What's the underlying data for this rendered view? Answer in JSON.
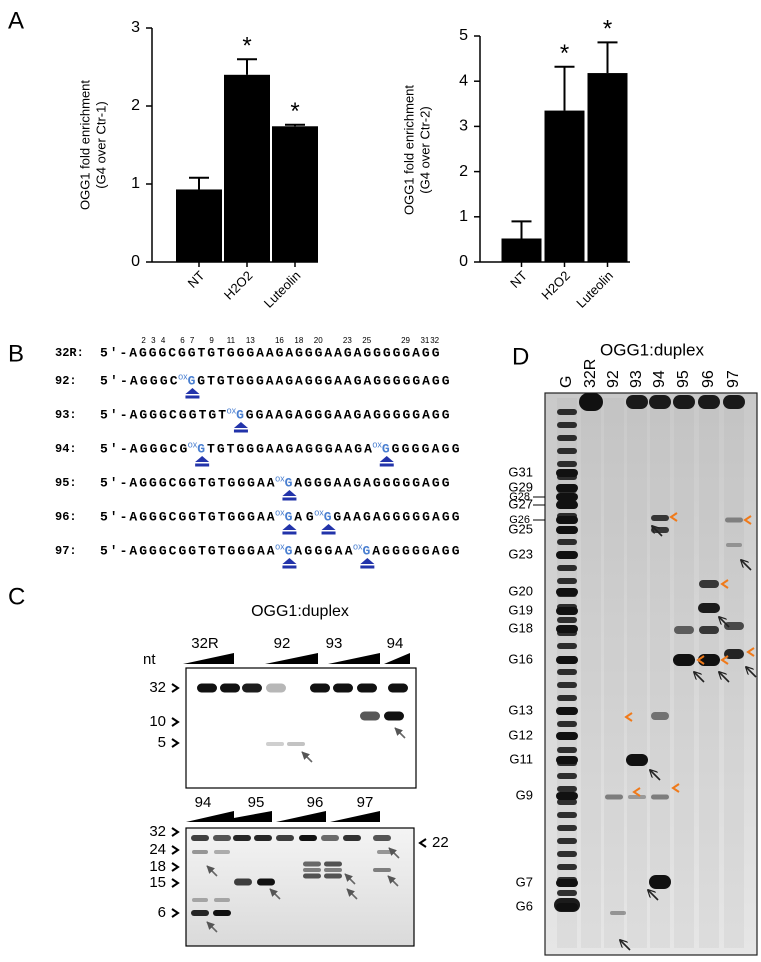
{
  "chart_data": [
    {
      "type": "bar",
      "ylabel": [
        "OGG1 fold enrichment",
        "(G4 over Ctr-1)"
      ],
      "categories": [
        "NT",
        "H2O2",
        "Luteolin"
      ],
      "values": [
        0.93,
        2.4,
        1.74
      ],
      "errors": [
        0.15,
        0.2,
        0.02
      ],
      "value_annotations": [
        null,
        "*",
        "*"
      ],
      "color": "#000000",
      "ylim": [
        0,
        3
      ],
      "yticks": [
        0,
        1,
        2,
        3
      ]
    },
    {
      "type": "bar",
      "ylabel": [
        "OGG1 fold enrichment",
        "(G4 over Ctr-2)"
      ],
      "categories": [
        "NT",
        "H2O2",
        "Luteolin"
      ],
      "values": [
        0.52,
        3.35,
        4.18
      ],
      "errors": [
        0.38,
        0.97,
        0.68
      ],
      "value_annotations": [
        null,
        "*",
        "*"
      ],
      "color": "#000000",
      "ylim": [
        0,
        5
      ],
      "yticks": [
        0,
        1,
        2,
        3,
        4,
        5
      ]
    }
  ],
  "panel_labels": [
    "A",
    "B",
    "C",
    "D"
  ],
  "sequences": {
    "positions": [
      2,
      3,
      4,
      6,
      7,
      9,
      11,
      13,
      16,
      18,
      20,
      23,
      25,
      29,
      31,
      32
    ],
    "ox_label": "ox",
    "rows": [
      {
        "label": "32R:",
        "segments": [
          {
            "text": "5'-AGGGCGGTGTGGGAAGAGGGAAGAGGGGGAGG"
          }
        ]
      },
      {
        "label": "92:",
        "segments": [
          {
            "text": "5'-AGGGC"
          },
          {
            "ox": "G"
          },
          {
            "text": "GTGTGGGAAGAGGGAAGAGGGGGAGG"
          }
        ]
      },
      {
        "label": "93:",
        "segments": [
          {
            "text": "5'-AGGGCGGTGT"
          },
          {
            "ox": "G"
          },
          {
            "text": "GGAAGAGGGAAGAGGGGGAGG"
          }
        ]
      },
      {
        "label": "94:",
        "segments": [
          {
            "text": "5'-AGGGCG"
          },
          {
            "ox": "G"
          },
          {
            "text": "TGTGGGAAGAGGGAAGA"
          },
          {
            "ox": "G"
          },
          {
            "text": "GGGGAGG"
          }
        ]
      },
      {
        "label": "95:",
        "segments": [
          {
            "text": "5'-AGGGCGGTGTGGGAA"
          },
          {
            "ox": "G"
          },
          {
            "text": "AGGGAAGAGGGGGAGG"
          }
        ]
      },
      {
        "label": "96:",
        "segments": [
          {
            "text": "5'-AGGGCGGTGTGGGAA"
          },
          {
            "ox": "G"
          },
          {
            "text": "AG"
          },
          {
            "ox": "G"
          },
          {
            "text": "GAAGAGGGGGAGG"
          }
        ]
      },
      {
        "label": "97:",
        "segments": [
          {
            "text": "5'-AGGGCGGTGTGGGAA"
          },
          {
            "ox": "G"
          },
          {
            "text": "AGGGAA"
          },
          {
            "ox": "G"
          },
          {
            "text": "AGGGGGAGG"
          }
        ]
      }
    ]
  },
  "gel_c": {
    "title": "OGG1:duplex",
    "unit": "nt",
    "top": {
      "lanes": [
        "32R",
        "92",
        "93",
        "94"
      ],
      "markers": [
        32,
        10,
        5
      ]
    },
    "bottom": {
      "lanes": [
        "94",
        "95",
        "96",
        "97"
      ],
      "markers": [
        32,
        24,
        18,
        15,
        6
      ],
      "right_markers": [
        22
      ]
    }
  },
  "gel_d": {
    "title": "OGG1:duplex",
    "lanes": [
      "G",
      "32R",
      "92",
      "93",
      "94",
      "95",
      "96",
      "97"
    ],
    "markers": [
      "G31",
      "G29",
      "G28",
      "G27",
      "G26",
      "G25",
      "G23",
      "G20",
      "G19",
      "G18",
      "G16",
      "G13",
      "G12",
      "G11",
      "G9",
      "G7",
      "G6"
    ]
  }
}
